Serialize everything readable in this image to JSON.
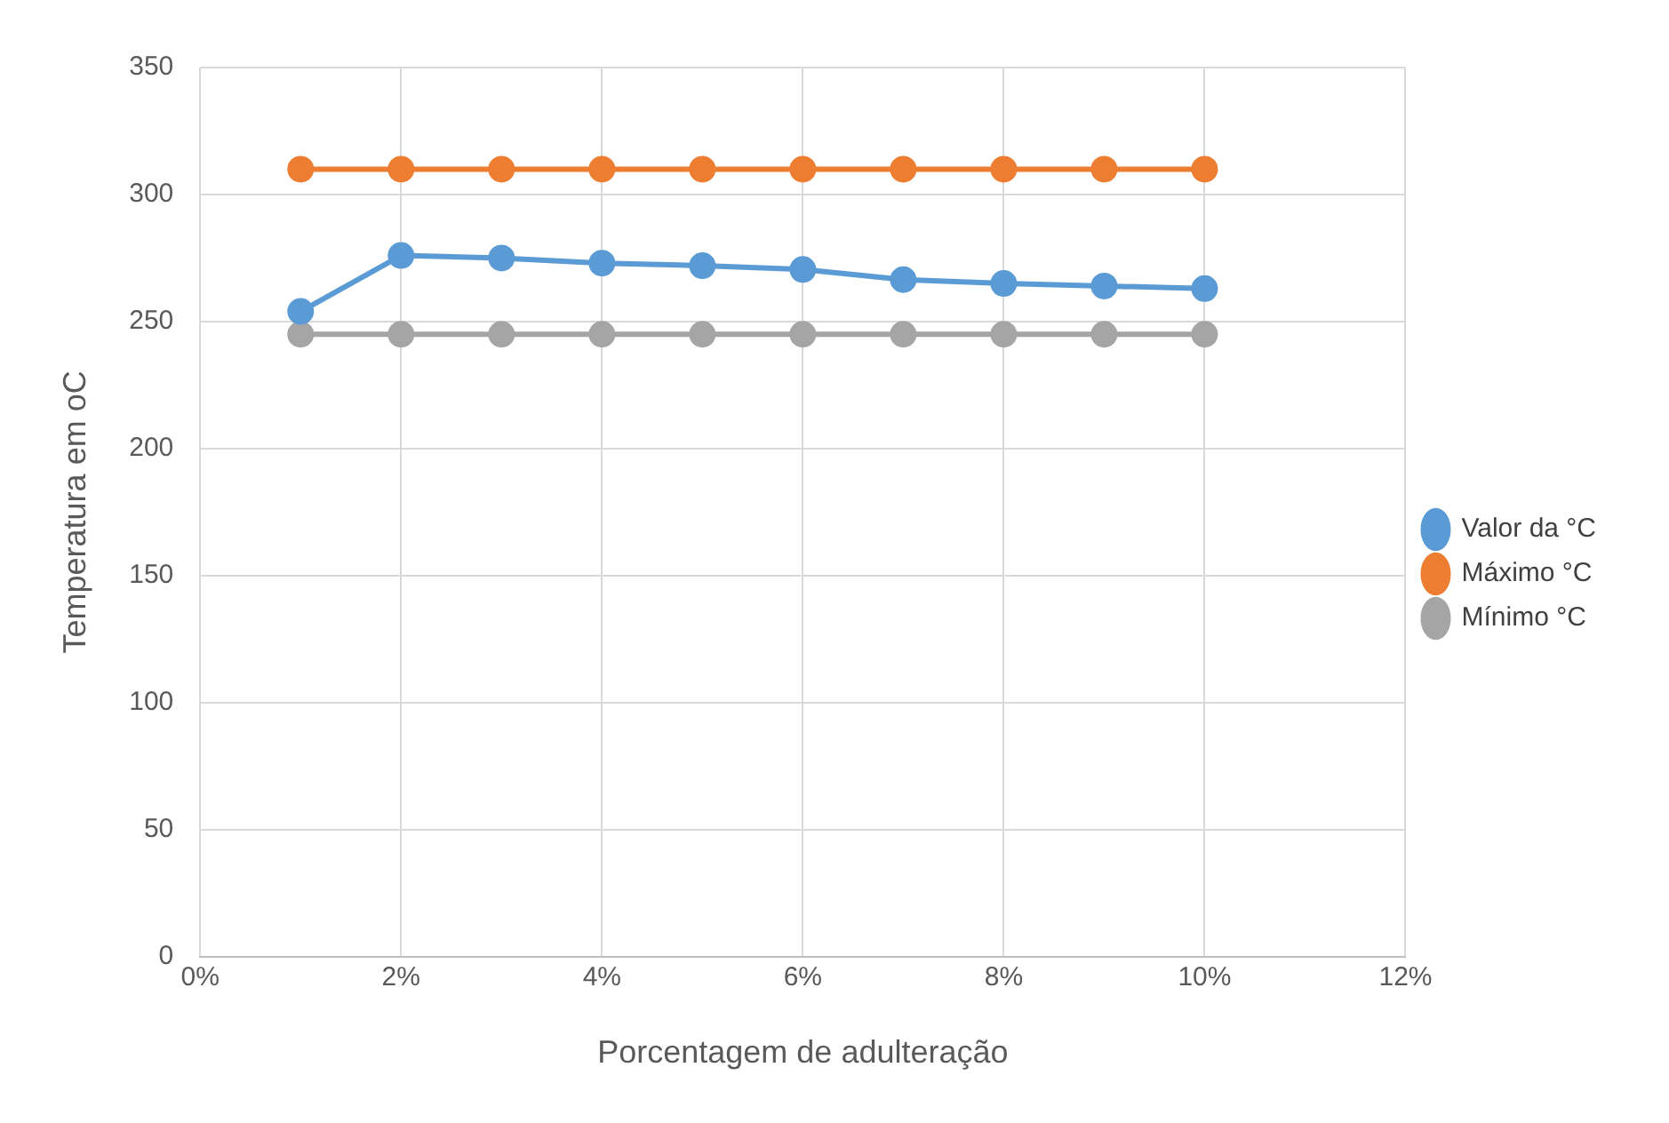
{
  "chart_data": {
    "type": "line",
    "xlabel": "Porcentagem de adulteração",
    "ylabel": "Temperatura em oC",
    "x": [
      1,
      2,
      3,
      4,
      5,
      6,
      7,
      8,
      9,
      10
    ],
    "series": [
      {
        "name": "Valor da °C",
        "color": "#5b9bd5",
        "values": [
          254,
          276,
          275,
          273,
          272,
          270.5,
          266.5,
          265,
          264,
          263
        ]
      },
      {
        "name": "Máximo °C",
        "color": "#ed7d31",
        "values": [
          310,
          310,
          310,
          310,
          310,
          310,
          310,
          310,
          310,
          310
        ]
      },
      {
        "name": "Mínimo °C",
        "color": "#a5a5a5",
        "values": [
          245,
          245,
          245,
          245,
          245,
          245,
          245,
          245,
          245,
          245
        ]
      }
    ],
    "xlim": [
      0,
      12
    ],
    "xticks": [
      {
        "value": 0,
        "label": "0%"
      },
      {
        "value": 2,
        "label": "2%"
      },
      {
        "value": 4,
        "label": "4%"
      },
      {
        "value": 6,
        "label": "6%"
      },
      {
        "value": 8,
        "label": "8%"
      },
      {
        "value": 10,
        "label": "10%"
      },
      {
        "value": 12,
        "label": "12%"
      }
    ],
    "ylim": [
      0,
      350
    ],
    "yticks": [
      0,
      50,
      100,
      150,
      200,
      250,
      300,
      350
    ],
    "grid": true,
    "legend": "right",
    "marker": "circle",
    "line_style": "solid"
  }
}
